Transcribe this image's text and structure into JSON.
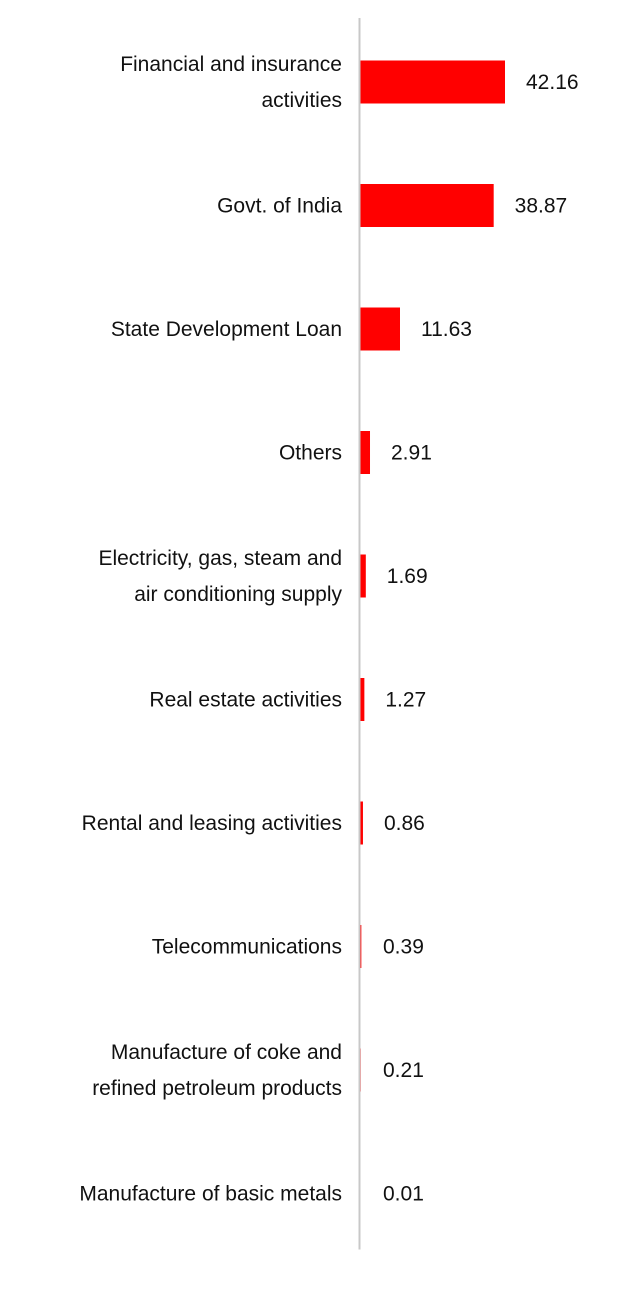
{
  "chart_data": {
    "type": "bar",
    "orientation": "horizontal",
    "categories": [
      "Financial and insurance activities",
      "Govt. of India",
      "State Development Loan",
      "Others",
      "Electricity, gas, steam and air conditioning supply",
      "Real estate activities",
      "Rental and leasing activities",
      "Telecommunications",
      "Manufacture of coke and refined petroleum products",
      "Manufacture of basic metals"
    ],
    "category_lines": [
      [
        "Financial and insurance",
        "activities"
      ],
      [
        "Govt. of India"
      ],
      [
        "State Development Loan"
      ],
      [
        "Others"
      ],
      [
        "Electricity, gas, steam and",
        "air conditioning supply"
      ],
      [
        "Real estate activities"
      ],
      [
        "Rental and leasing activities"
      ],
      [
        "Telecommunications"
      ],
      [
        "Manufacture of coke and",
        "refined petroleum products"
      ],
      [
        "Manufacture of basic metals"
      ]
    ],
    "values": [
      42.16,
      38.87,
      11.63,
      2.91,
      1.69,
      1.27,
      0.86,
      0.39,
      0.21,
      0.01
    ],
    "value_labels": [
      "42.16",
      "38.87",
      "11.63",
      "2.91",
      "1.69",
      "1.27",
      "0.86",
      "0.39",
      "0.21",
      "0.01"
    ],
    "title": "",
    "xlabel": "",
    "ylabel": "",
    "xlim": [
      0,
      42.16
    ],
    "grid": false,
    "legend": "none",
    "bar_color": "#ff0000",
    "axis_color": "#c8c8c8"
  }
}
